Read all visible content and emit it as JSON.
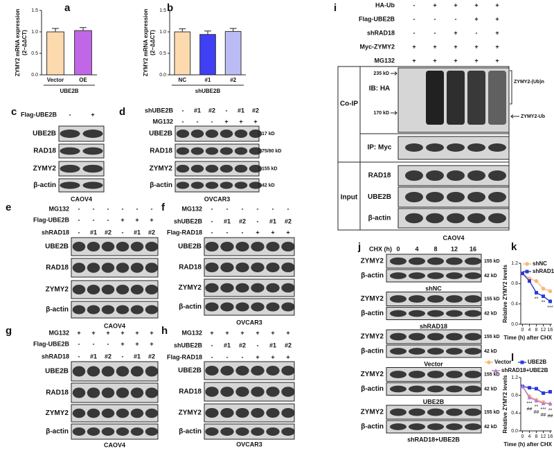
{
  "chart_data": [
    {
      "type": "bar",
      "letter": "a",
      "y_label": "ZYMY2 mRNA expression",
      "y_label_unit": "(2−ΔΔCT)",
      "categories": [
        "Vector",
        "OE"
      ],
      "values": [
        1.0,
        1.03
      ],
      "errors": [
        0.08,
        0.07
      ],
      "colors": [
        "#fdd9ae",
        "#c266e8"
      ],
      "group_label": "UBE2B",
      "ylim": [
        0,
        1.5
      ],
      "yticks": [
        {
          "value": 0,
          "label": "0.0"
        },
        0.5,
        {
          "value": 1,
          "label": "1.0"
        },
        1.5
      ]
    },
    {
      "type": "bar",
      "letter": "b",
      "y_label": "ZYMY2 mRNA expression",
      "y_label_unit": "(2−ΔΔCT)",
      "categories": [
        "NC",
        "#1",
        "#2"
      ],
      "values": [
        1.0,
        0.94,
        1.01
      ],
      "errors": [
        0.07,
        0.08,
        0.07
      ],
      "colors": [
        "#fdd9ae",
        "#3f3ff5",
        "#bcbcf5"
      ],
      "group_label": "shUBE2B",
      "ylim": [
        0,
        1.5
      ],
      "yticks": [
        {
          "value": 0,
          "label": "0.0"
        },
        0.5,
        {
          "value": 1,
          "label": "1.0"
        },
        1.5
      ]
    },
    {
      "type": "line",
      "letter": "k",
      "y_label": "Relative ZYMY2 levels",
      "x_label": "Time (h) after CHX",
      "x": [
        0,
        4,
        8,
        12,
        16
      ],
      "series": [
        {
          "name": "shNC",
          "color": "#f8b878",
          "marker": "circle",
          "values": [
            1.0,
            0.9,
            0.85,
            0.7,
            0.65
          ]
        },
        {
          "name": "shRAD18",
          "color": "#2b3ad6",
          "marker": "square",
          "values": [
            1.0,
            0.85,
            0.62,
            0.55,
            0.45
          ]
        }
      ],
      "xlim": [
        -1,
        17
      ],
      "xticks": [
        0,
        4,
        8,
        12,
        16
      ],
      "ylim": [
        0,
        1.2
      ],
      "yticks": [
        {
          "value": 0,
          "label": "0.0"
        },
        0.4,
        0.8,
        1.2
      ],
      "annotations": [
        {
          "text": "**",
          "x": 8
        },
        {
          "text": "**",
          "x": 12
        },
        {
          "text": "***",
          "x": 16
        }
      ]
    },
    {
      "type": "line",
      "letter": "l",
      "y_label": "Relative ZYMY2 levels",
      "x_label": "Time (h) after CHX",
      "x": [
        0,
        4,
        8,
        12,
        16
      ],
      "series": [
        {
          "name": "Vector",
          "color": "#f8b878",
          "marker": "circle",
          "values": [
            1.0,
            0.78,
            0.7,
            0.65,
            0.6
          ]
        },
        {
          "name": "UBE2B",
          "color": "#2b3ad6",
          "marker": "square",
          "values": [
            1.0,
            0.97,
            0.95,
            0.85,
            0.88
          ]
        },
        {
          "name": "shRAD18+UBE2B",
          "color": "#b57ad6",
          "marker": "triangle",
          "values": [
            1.0,
            0.75,
            0.68,
            0.62,
            0.62
          ]
        }
      ],
      "xlim": [
        -1,
        17
      ],
      "xticks": [
        0,
        4,
        8,
        12,
        16
      ],
      "ylim": [
        0,
        1.2
      ],
      "yticks": [
        {
          "value": 0,
          "label": "0.0"
        },
        0.4,
        0.8,
        1.2
      ],
      "annotations": [
        {
          "text": "***",
          "x": 4
        },
        {
          "text": "**",
          "x": 8
        },
        {
          "text": "***",
          "x": 12
        },
        {
          "text": "**",
          "x": 16
        },
        {
          "text": "##",
          "x": 4
        },
        {
          "text": "##",
          "x": 8
        },
        {
          "text": "##",
          "x": 12
        },
        {
          "text": "##",
          "x": 16
        }
      ]
    }
  ],
  "blots": [
    {
      "letter": "c",
      "conditions": [
        {
          "label": "Flag-UBE2B",
          "marks": [
            "-",
            "+"
          ]
        }
      ],
      "bands": [
        {
          "label": "UBE2B"
        },
        {
          "label": "RAD18"
        },
        {
          "label": "ZYMY2"
        },
        {
          "label": "β-actin"
        }
      ],
      "cell": "CAOV4"
    },
    {
      "letter": "d",
      "conditions": [
        {
          "label": "shUBE2B",
          "marks": [
            "-",
            "#1",
            "#2",
            "-",
            "#1",
            "#2"
          ]
        },
        {
          "label": "MG132",
          "marks": [
            "-",
            "-",
            "-",
            "+",
            "+",
            "+"
          ]
        }
      ],
      "bands": [
        {
          "label": "UBE2B",
          "marker": "17 kD"
        },
        {
          "label": "RAD18",
          "marker": "75/80 kD"
        },
        {
          "label": "ZYMY2",
          "marker": "155 kD"
        },
        {
          "label": "β-actin",
          "marker": "42 kD"
        }
      ],
      "cell": "OVCAR3"
    },
    {
      "letter": "e",
      "conditions": [
        {
          "label": "MG132",
          "marks": [
            "-",
            "-",
            "-",
            "-",
            "-",
            "-"
          ]
        },
        {
          "label": "Flag-UBE2B",
          "marks": [
            "-",
            "-",
            "-",
            "+",
            "+",
            "+"
          ]
        },
        {
          "label": "shRAD18",
          "marks": [
            "-",
            "#1",
            "#2",
            "-",
            "#1",
            "#2"
          ]
        }
      ],
      "bands": [
        {
          "label": "UBE2B"
        },
        {
          "label": "RAD18"
        },
        {
          "label": "ZYMY2"
        },
        {
          "label": "β-actin"
        }
      ],
      "cell": "CAOV4"
    },
    {
      "letter": "f",
      "conditions": [
        {
          "label": "MG132",
          "marks": [
            "-",
            "-",
            "-",
            "-",
            "-",
            "-"
          ]
        },
        {
          "label": "shUBE2B",
          "marks": [
            "-",
            "#1",
            "#2",
            "-",
            "#1",
            "#2"
          ]
        },
        {
          "label": "Flag-RAD18",
          "marks": [
            "-",
            "-",
            "-",
            "+",
            "+",
            "+"
          ]
        }
      ],
      "bands": [
        {
          "label": "UBE2B"
        },
        {
          "label": "RAD18"
        },
        {
          "label": "ZYMY2"
        },
        {
          "label": "β-actin"
        }
      ],
      "cell": "OVCAR3"
    },
    {
      "letter": "g",
      "conditions": [
        {
          "label": "MG132",
          "marks": [
            "+",
            "+",
            "+",
            "+",
            "+",
            "+"
          ]
        },
        {
          "label": "Flag-UBE2B",
          "marks": [
            "-",
            "-",
            "-",
            "+",
            "+",
            "+"
          ]
        },
        {
          "label": "shRAD18",
          "marks": [
            "-",
            "#1",
            "#2",
            "-",
            "#1",
            "#2"
          ]
        }
      ],
      "bands": [
        {
          "label": "UBE2B"
        },
        {
          "label": "RAD18"
        },
        {
          "label": "ZYMY2"
        },
        {
          "label": "β-actin"
        }
      ],
      "cell": "CAOV4"
    },
    {
      "letter": "h",
      "conditions": [
        {
          "label": "MG132",
          "marks": [
            "+",
            "+",
            "+",
            "+",
            "+",
            "+"
          ]
        },
        {
          "label": "shUBE2B",
          "marks": [
            "-",
            "#1",
            "#2",
            "-",
            "#1",
            "#2"
          ]
        },
        {
          "label": "Flag-RAD18",
          "marks": [
            "-",
            "-",
            "-",
            "+",
            "+",
            "+"
          ]
        }
      ],
      "bands": [
        {
          "label": "UBE2B"
        },
        {
          "label": "RAD18"
        },
        {
          "label": "ZYMY2"
        },
        {
          "label": "β-actin"
        }
      ],
      "cell": "OVCAR3"
    }
  ],
  "ip_blot": {
    "letter": "i",
    "conditions": [
      {
        "label": "HA-Ub",
        "marks": [
          "-",
          "+",
          "+",
          "+",
          "+"
        ]
      },
      {
        "label": "Flag-UBE2B",
        "marks": [
          "-",
          "-",
          "-",
          "+",
          "+"
        ]
      },
      {
        "label": "shRAD18",
        "marks": [
          "-",
          "-",
          "+",
          "-",
          "+"
        ]
      },
      {
        "label": "Myc-ZYMY2",
        "marks": [
          "+",
          "+",
          "+",
          "+",
          "+"
        ]
      },
      {
        "label": "MG132",
        "marks": [
          "+",
          "+",
          "+",
          "+",
          "+"
        ]
      }
    ],
    "coip_label": "Co-IP",
    "ib_label": "IB: HA",
    "marker_high": "235 kD",
    "marker_low": "170 kD",
    "smear_label": "ZYMY2-(Ub)n",
    "ub_label": "ZYMY2-Ub",
    "ip_label": "IP: Myc",
    "input_label": "Input",
    "input_bands": [
      "RAD18",
      "UBE2B",
      "β-actin"
    ],
    "cell": "CAOV4"
  },
  "chx_blot": {
    "letter": "j",
    "time_label": "CHX (h)",
    "times": [
      0,
      4,
      8,
      12,
      16
    ],
    "groups": [
      {
        "name": "shNC",
        "bands": [
          {
            "label": "ZYMY2",
            "marker": "155 kD"
          },
          {
            "label": "β-actin",
            "marker": "42 kD"
          }
        ]
      },
      {
        "name": "shRAD18",
        "bands": [
          {
            "label": "ZYMY2",
            "marker": "155 kD"
          },
          {
            "label": "β-actin",
            "marker": "42 kD"
          }
        ]
      },
      {
        "name": "Vector",
        "bands": [
          {
            "label": "ZYMY2",
            "marker": "155 kD"
          },
          {
            "label": "β-actin",
            "marker": "42 kD"
          }
        ]
      },
      {
        "name": "UBE2B",
        "bands": [
          {
            "label": "ZYMY2",
            "marker": "155 kD"
          },
          {
            "label": "β-actin",
            "marker": "42 kD"
          }
        ]
      },
      {
        "name": "shRAD18+UBE2B",
        "bands": [
          {
            "label": "ZYMY2",
            "marker": "155 kD"
          },
          {
            "label": "β-actin",
            "marker": "42 kD"
          }
        ]
      }
    ]
  }
}
